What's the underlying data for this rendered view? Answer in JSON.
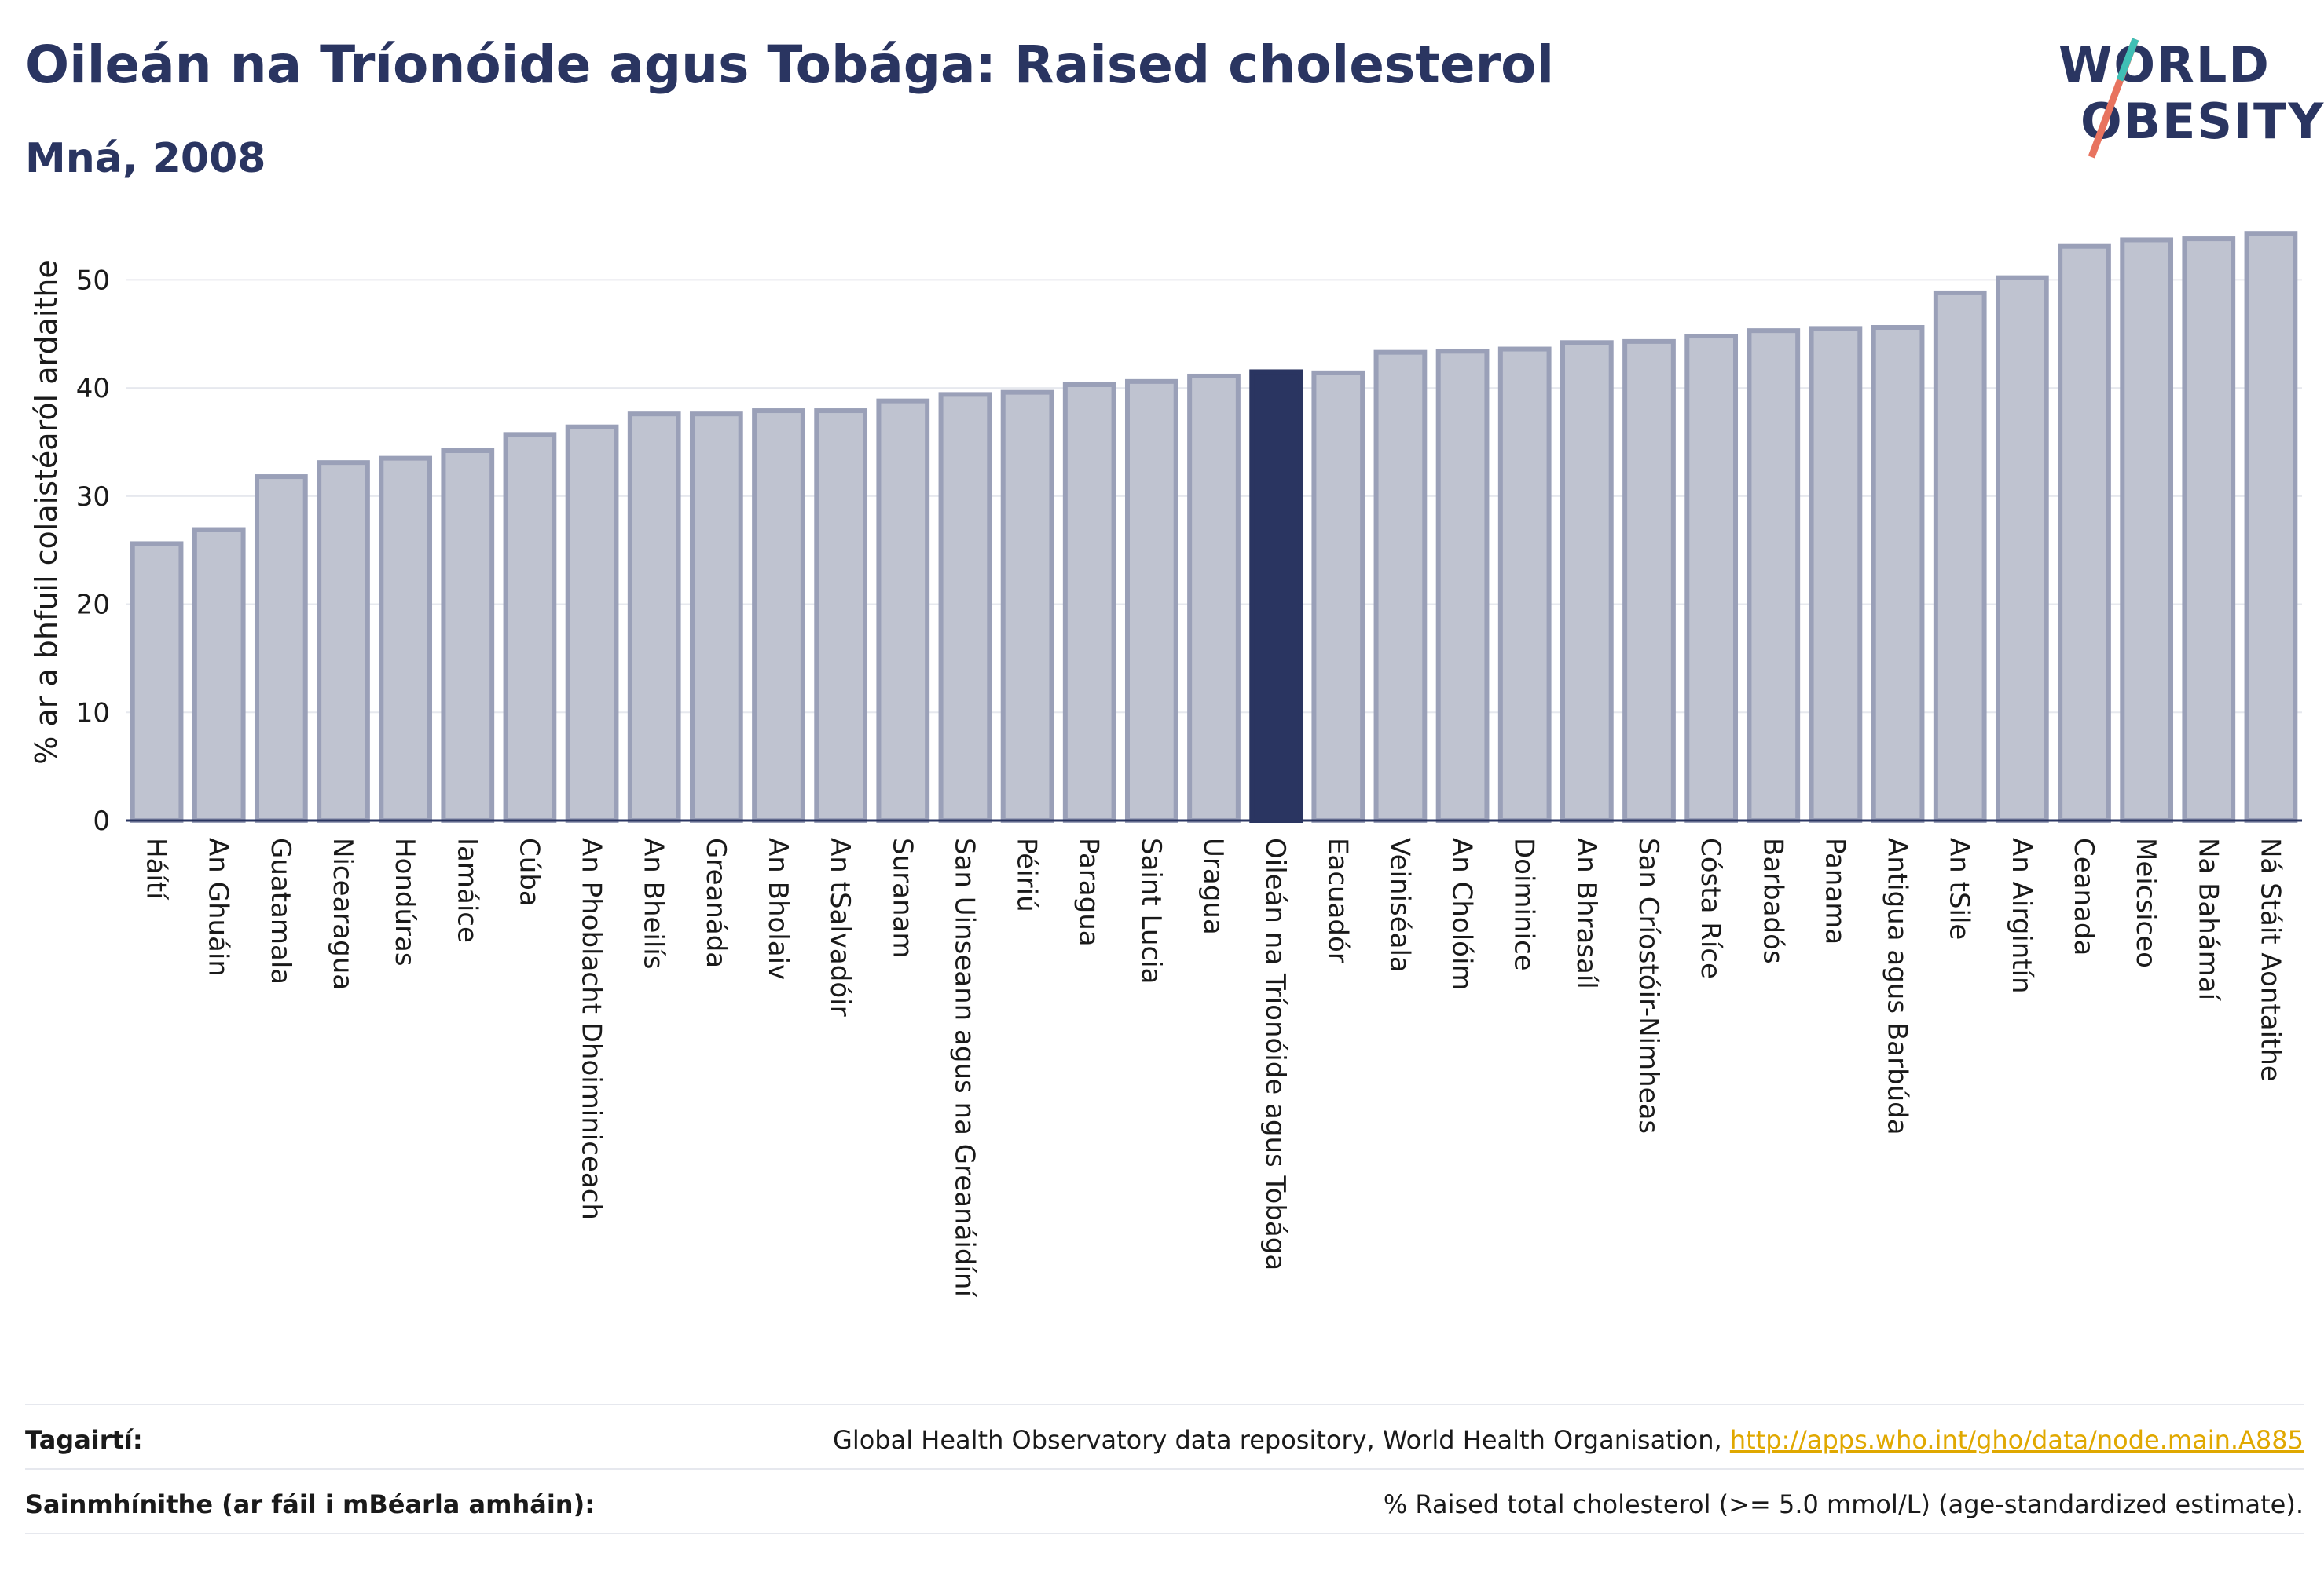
{
  "title": "Oileán na Tríonóide agus Tobága: Raised cholesterol",
  "subtitle": "Mná, 2008",
  "logo": {
    "line1": "WORLD",
    "line2": "OBESITY"
  },
  "colors": {
    "bar": "#bfc3d0",
    "bar_border": "#9aa0b8",
    "highlight": "#2a3561",
    "grid": "#e6e8ee",
    "text": "#2a3561",
    "link": "#e0a800"
  },
  "chart_data": {
    "type": "bar",
    "ylabel": "% ar a bhfuil colaistéaról ardaithe",
    "ylim": [
      0,
      57
    ],
    "yticks": [
      0,
      10,
      20,
      30,
      40,
      50
    ],
    "grid": true,
    "highlight_category": "Oileán na Tríonóide agus Tobága",
    "categories": [
      "Háítí",
      "An Ghuáin",
      "Guatamala",
      "Nicearagua",
      "Hondúras",
      "Iamáice",
      "Cúba",
      "An Phoblacht Dhoiminiceach",
      "An Bheilís",
      "Greanáda",
      "An Bholaiv",
      "An tSalvadóir",
      "Suranam",
      "San Uinseann agus na Greanáidíní",
      "Péiriú",
      "Paragua",
      "Saint Lucia",
      "Uragua",
      "Oileán na Tríonóide agus Tobága",
      "Eacuadór",
      "Veiniséala",
      "An Cholóim",
      "Doiminice",
      "An Bhrasaíl",
      "San Críostóir-Nimheas",
      "Cósta Ríce",
      "Barbadós",
      "Panama",
      "Antigua agus Barbúda",
      "An tSile",
      "An Airgintín",
      "Ceanada",
      "Meicsiceo",
      "Na Bahámaí",
      "Ná Stáit Aontaithe"
    ],
    "values": [
      25.6,
      26.9,
      31.8,
      33.1,
      33.5,
      34.2,
      35.7,
      36.4,
      37.6,
      37.6,
      37.9,
      37.9,
      38.8,
      39.4,
      39.6,
      40.3,
      40.6,
      41.1,
      41.5,
      41.4,
      43.3,
      43.4,
      43.6,
      44.2,
      44.3,
      44.8,
      45.3,
      45.5,
      45.6,
      48.8,
      50.2,
      53.1,
      53.7,
      53.8,
      54.3
    ]
  },
  "footer": {
    "refs_label": "Tagairtí:",
    "refs_text": "Global Health Observatory data repository, World Health Organisation,",
    "refs_link": "http://apps.who.int/gho/data/node.main.A885",
    "defs_label": "Sainmhínithe (ar fáil i mBéarla amháin):",
    "defs_text": "% Raised total cholesterol (>= 5.0 mmol/L) (age-standardized estimate)."
  }
}
